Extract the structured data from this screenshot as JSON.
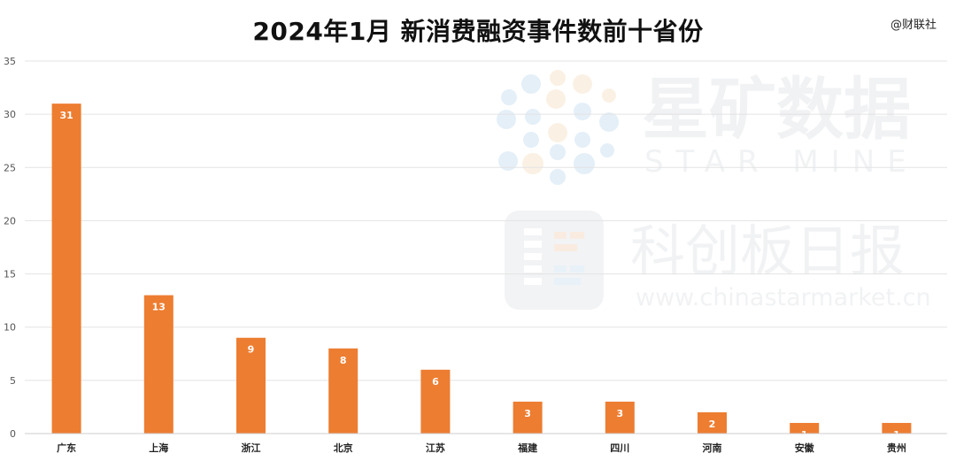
{
  "chart_data": {
    "type": "bar",
    "title": "2024年1月 新消费融资事件数前十省份",
    "source": "@财联社",
    "categories": [
      "广东",
      "上海",
      "浙江",
      "北京",
      "江苏",
      "福建",
      "四川",
      "河南",
      "安徽",
      "贵州"
    ],
    "values": [
      31,
      13,
      9,
      8,
      6,
      3,
      3,
      2,
      1,
      1
    ],
    "ylim": [
      0,
      35
    ],
    "yticks": [
      0,
      5,
      10,
      15,
      20,
      25,
      30,
      35
    ],
    "grid": true,
    "legend": "none",
    "bar_color": "#ED7D31",
    "data_labels": true
  },
  "watermark": {
    "brand1_cn": "星矿数据",
    "brand1_en": "STAR MINE",
    "brand2_cn": "科创板日报",
    "brand2_url": "www.chinastarmarket.cn"
  }
}
